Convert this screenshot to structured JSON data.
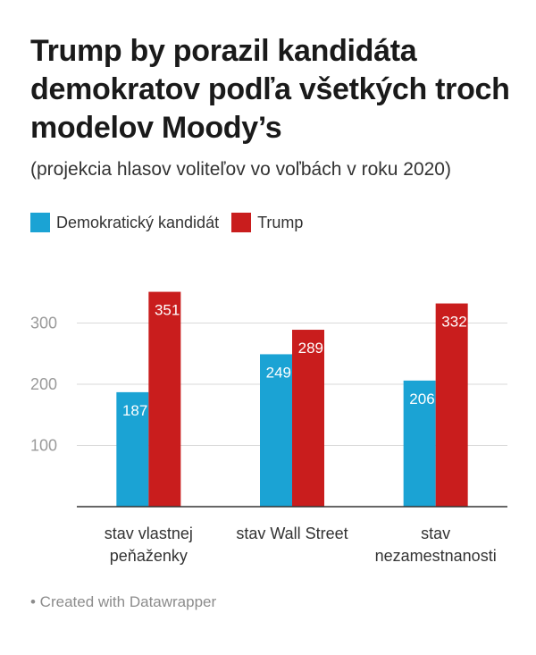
{
  "header": {
    "title": "Trump by porazil kandidáta demokratov podľa všetkých troch modelov Moody’s",
    "subtitle": "(projekcia hlasov voliteľov vo voľbách v roku 2020)"
  },
  "legend": [
    {
      "label": "Demokratický kandidát",
      "color": "#1ba3d4"
    },
    {
      "label": "Trump",
      "color": "#c91d1d"
    }
  ],
  "chart_data": {
    "type": "bar",
    "title": "Trump by porazil kandidáta demokratov podľa všetkých troch modelov Moody’s",
    "subtitle": "(projekcia hlasov voliteľov vo voľbách v roku 2020)",
    "categories": [
      [
        "stav vlastnej",
        "peňaženky"
      ],
      [
        "stav Wall Street"
      ],
      [
        "stav",
        "nezamestnanosti"
      ]
    ],
    "series": [
      {
        "name": "Demokratický kandidát",
        "color": "#1ba3d4",
        "values": [
          187,
          249,
          206
        ]
      },
      {
        "name": "Trump",
        "color": "#c91d1d",
        "values": [
          351,
          289,
          332
        ]
      }
    ],
    "ylim": [
      0,
      370
    ],
    "yticks": [
      100,
      200,
      300
    ],
    "grid": true,
    "legend_position": "top-left",
    "data_labels": true
  },
  "footer": {
    "text": "• Created with Datawrapper"
  }
}
